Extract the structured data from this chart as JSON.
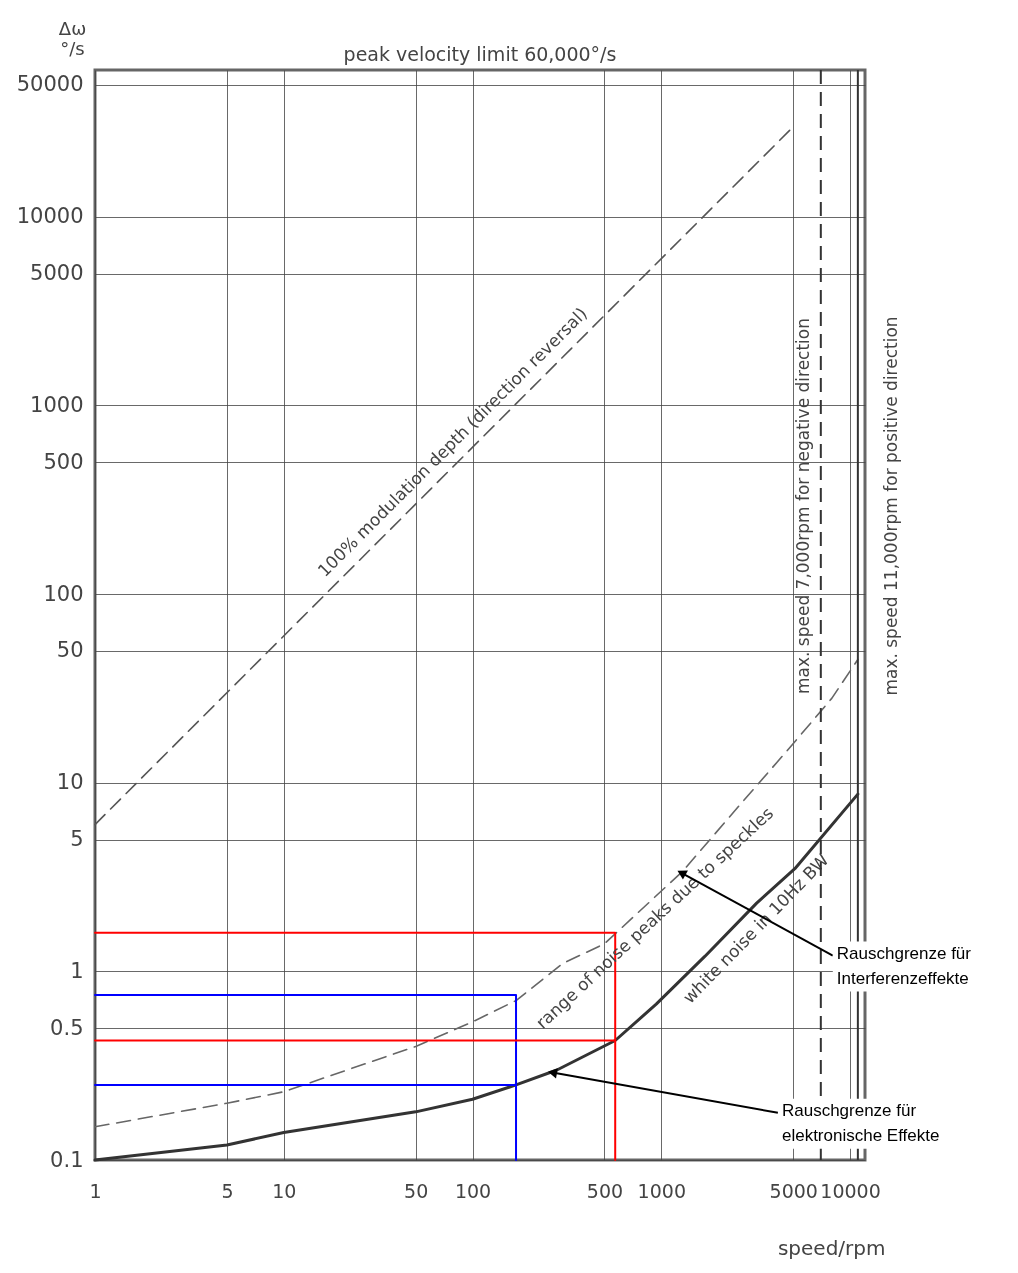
{
  "chart_data": {
    "type": "line",
    "title": "peak velocity limit 60,000°/s",
    "xlabel": "speed/rpm",
    "ylabel": "Δω\n°/s",
    "log": "xy",
    "grid": true,
    "xlim": [
      1,
      12000
    ],
    "xticks": [
      1,
      5,
      10,
      50,
      100,
      500,
      1000,
      5000,
      10000
    ],
    "ylim": [
      0.1,
      60000
    ],
    "yticks": [
      0.1,
      0.5,
      1,
      5,
      10,
      50,
      100,
      500,
      1000,
      5000,
      10000,
      50000
    ],
    "series": [
      {
        "name": "100% modulation depth (direction reversal)",
        "color": "#555555",
        "line_style": "dashed",
        "x": [
          1,
          5000
        ],
        "values": [
          6,
          30000
        ]
      },
      {
        "name": "range of noise peaks due to speckles",
        "color": "#666666",
        "line_style": "dashed",
        "x": [
          1,
          5,
          10,
          50,
          100,
          170,
          300,
          500,
          1300,
          2600,
          4700,
          8000,
          11000
        ],
        "values": [
          0.15,
          0.2,
          0.23,
          0.4,
          0.54,
          0.7,
          1.1,
          1.4,
          3.4,
          7.6,
          15,
          28,
          45
        ]
      },
      {
        "name": "white noise in 10Hz BW",
        "color": "#333333",
        "line_style": "solid",
        "x": [
          1,
          5,
          10,
          50,
          100,
          170,
          280,
          570,
          940,
          1700,
          3200,
          5100,
          11000
        ],
        "values": [
          0.1,
          0.12,
          0.14,
          0.18,
          0.21,
          0.25,
          0.3,
          0.43,
          0.67,
          1.2,
          2.3,
          3.5,
          8.7
        ]
      },
      {
        "color": "#0000ff",
        "line_style": "solid",
        "x": [
          1,
          170,
          170
        ],
        "values": [
          0.75,
          0.75,
          0.1
        ]
      },
      {
        "color": "#0000ff",
        "line_style": "solid",
        "x": [
          1,
          170
        ],
        "values": [
          0.25,
          0.25
        ]
      },
      {
        "color": "#ff0000",
        "line_style": "solid",
        "x": [
          1,
          570,
          570
        ],
        "values": [
          1.6,
          1.6,
          0.1
        ]
      },
      {
        "color": "#ff0000",
        "line_style": "solid",
        "x": [
          1,
          570
        ],
        "values": [
          0.43,
          0.43
        ]
      }
    ],
    "ref_lines": [
      {
        "axis": "x",
        "value": 7000,
        "label": "max. speed 7,000rpm for negative direction",
        "line_style": "dashed",
        "color": "#333333"
      },
      {
        "axis": "x",
        "value": 11000,
        "label": "max. speed 11,000rpm for positive direction",
        "line_style": "solid",
        "color": "#333333"
      }
    ],
    "annotations": [
      {
        "text": "Rauschgrenze für Interferenzeffekte",
        "x": 1300,
        "y": 3.3
      },
      {
        "text": "Rauschgrenze für elektronische Effekte",
        "x": 270,
        "y": 0.29
      }
    ]
  }
}
